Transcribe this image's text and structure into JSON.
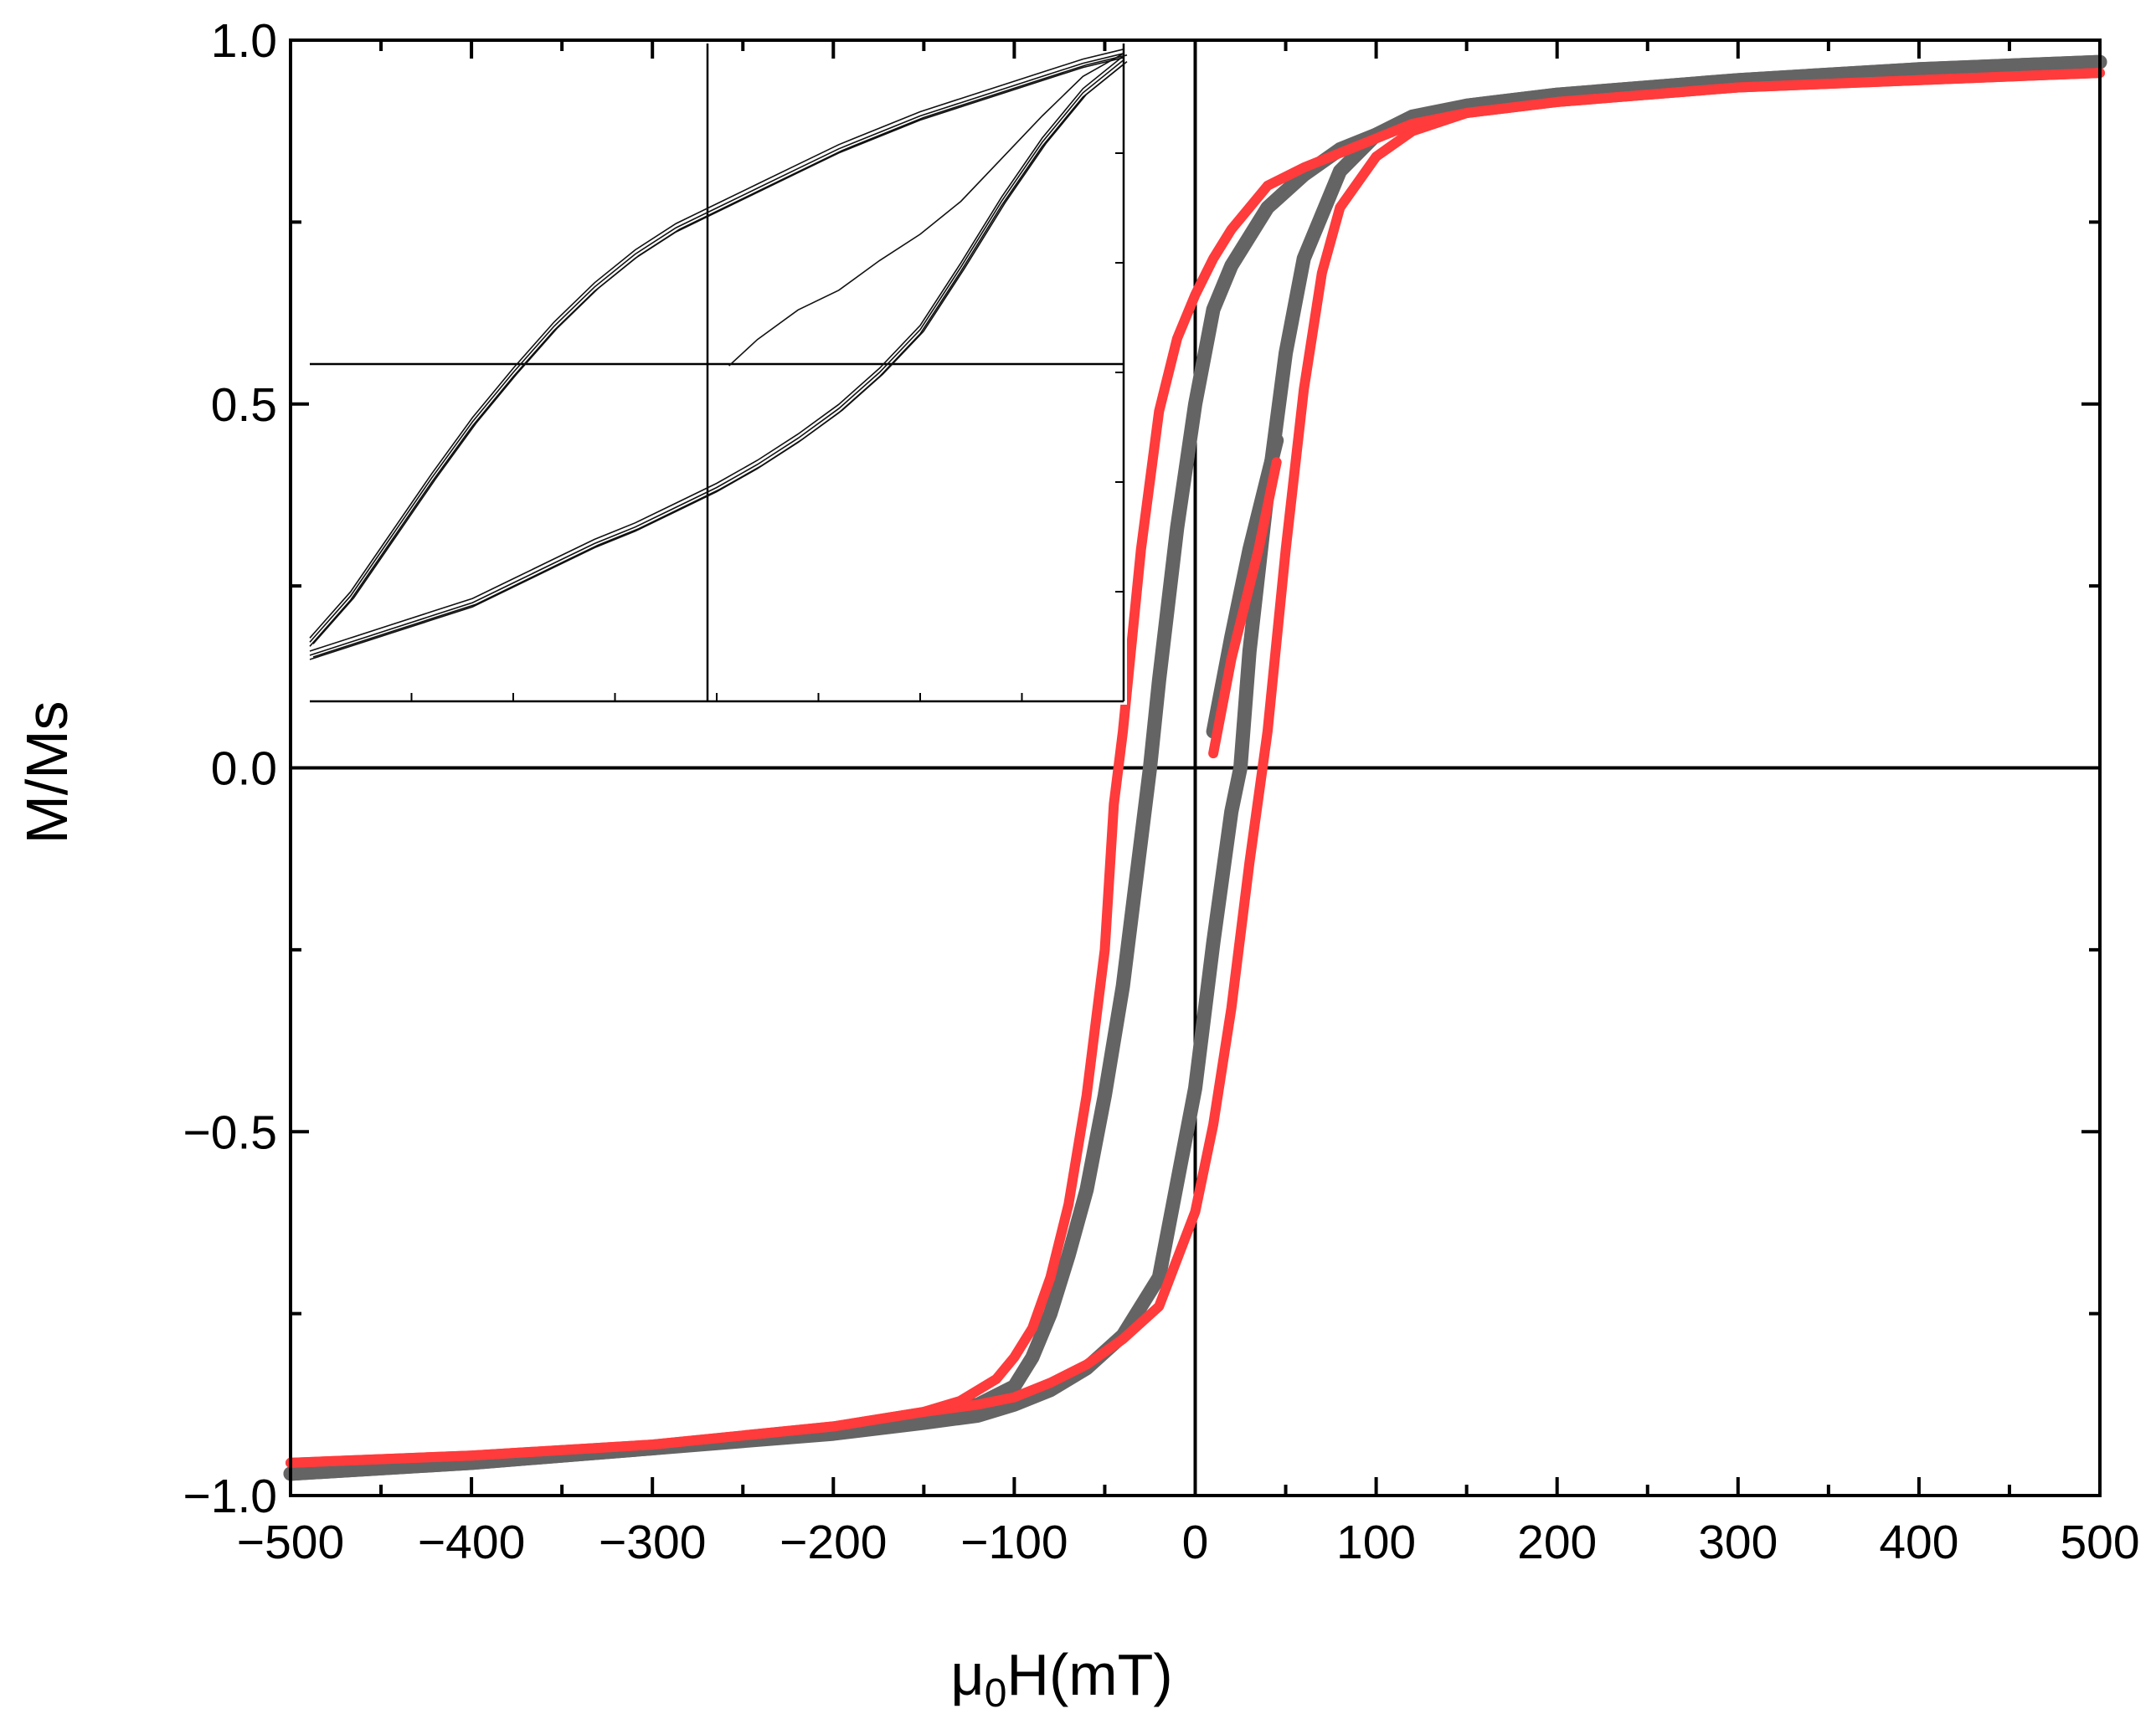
{
  "chart_data": {
    "type": "line",
    "title": "",
    "xlabel": "μ0H(mT)",
    "xlabel_main": "μ",
    "xlabel_sub": "0",
    "xlabel_rest": "H(mT)",
    "ylabel": "M/Ms",
    "xlim": [
      -500,
      500
    ],
    "ylim": [
      -1.0,
      1.0
    ],
    "x_ticks": [
      -500,
      -400,
      -300,
      -200,
      -100,
      0,
      100,
      200,
      300,
      400,
      500
    ],
    "x_tick_labels": [
      "−500",
      "−400",
      "−300",
      "−200",
      "−100",
      "0",
      "100",
      "200",
      "300",
      "400",
      "500"
    ],
    "y_ticks": [
      -1.0,
      -0.5,
      0.0,
      0.5,
      1.0
    ],
    "y_tick_labels": [
      "−1.0",
      "−0.5",
      "0.0",
      "0.5",
      "1.0"
    ],
    "grid": false,
    "legend": "none",
    "series": [
      {
        "color": "#646464",
        "descending": [
          [
            500,
            0.97
          ],
          [
            400,
            0.96
          ],
          [
            300,
            0.945
          ],
          [
            200,
            0.925
          ],
          [
            150,
            0.91
          ],
          [
            120,
            0.895
          ],
          [
            100,
            0.87
          ],
          [
            80,
            0.85
          ],
          [
            60,
            0.815
          ],
          [
            40,
            0.77
          ],
          [
            20,
            0.69
          ],
          [
            10,
            0.63
          ],
          [
            0,
            0.5
          ],
          [
            -10,
            0.33
          ],
          [
            -20,
            0.12
          ],
          [
            -25,
            0.0
          ],
          [
            -30,
            -0.1
          ],
          [
            -40,
            -0.3
          ],
          [
            -50,
            -0.45
          ],
          [
            -60,
            -0.58
          ],
          [
            -70,
            -0.67
          ],
          [
            -80,
            -0.75
          ],
          [
            -90,
            -0.81
          ],
          [
            -100,
            -0.85
          ],
          [
            -120,
            -0.875
          ],
          [
            -150,
            -0.89
          ],
          [
            -200,
            -0.91
          ],
          [
            -300,
            -0.935
          ],
          [
            -400,
            -0.955
          ],
          [
            -500,
            -0.97
          ]
        ],
        "ascending": [
          [
            -500,
            -0.97
          ],
          [
            -400,
            -0.955
          ],
          [
            -300,
            -0.935
          ],
          [
            -200,
            -0.915
          ],
          [
            -150,
            -0.9
          ],
          [
            -120,
            -0.89
          ],
          [
            -100,
            -0.875
          ],
          [
            -80,
            -0.855
          ],
          [
            -60,
            -0.825
          ],
          [
            -40,
            -0.78
          ],
          [
            -20,
            -0.7
          ],
          [
            0,
            -0.44
          ],
          [
            10,
            -0.24
          ],
          [
            20,
            -0.06
          ],
          [
            25,
            0.0
          ],
          [
            30,
            0.16
          ],
          [
            40,
            0.38
          ],
          [
            50,
            0.57
          ],
          [
            60,
            0.7
          ],
          [
            80,
            0.82
          ],
          [
            100,
            0.87
          ],
          [
            120,
            0.89
          ],
          [
            150,
            0.91
          ],
          [
            200,
            0.925
          ],
          [
            300,
            0.945
          ],
          [
            400,
            0.96
          ],
          [
            500,
            0.97
          ]
        ],
        "initial": [
          [
            10,
            0.05
          ],
          [
            20,
            0.18
          ],
          [
            30,
            0.3
          ],
          [
            45,
            0.45
          ]
        ]
      },
      {
        "color": "#ff3b3b",
        "descending": [
          [
            500,
            0.955
          ],
          [
            400,
            0.945
          ],
          [
            300,
            0.935
          ],
          [
            200,
            0.915
          ],
          [
            150,
            0.9
          ],
          [
            120,
            0.885
          ],
          [
            100,
            0.865
          ],
          [
            80,
            0.845
          ],
          [
            60,
            0.825
          ],
          [
            40,
            0.8
          ],
          [
            20,
            0.74
          ],
          [
            10,
            0.7
          ],
          [
            0,
            0.65
          ],
          [
            -10,
            0.59
          ],
          [
            -20,
            0.49
          ],
          [
            -30,
            0.3
          ],
          [
            -40,
            0.05
          ],
          [
            -45,
            -0.05
          ],
          [
            -50,
            -0.25
          ],
          [
            -60,
            -0.45
          ],
          [
            -70,
            -0.6
          ],
          [
            -80,
            -0.7
          ],
          [
            -90,
            -0.77
          ],
          [
            -100,
            -0.81
          ],
          [
            -110,
            -0.84
          ],
          [
            -130,
            -0.87
          ],
          [
            -150,
            -0.885
          ],
          [
            -200,
            -0.905
          ],
          [
            -300,
            -0.93
          ],
          [
            -400,
            -0.945
          ],
          [
            -500,
            -0.955
          ]
        ],
        "ascending": [
          [
            -500,
            -0.955
          ],
          [
            -400,
            -0.945
          ],
          [
            -300,
            -0.93
          ],
          [
            -200,
            -0.905
          ],
          [
            -150,
            -0.885
          ],
          [
            -120,
            -0.875
          ],
          [
            -100,
            -0.865
          ],
          [
            -80,
            -0.845
          ],
          [
            -60,
            -0.82
          ],
          [
            -40,
            -0.785
          ],
          [
            -20,
            -0.74
          ],
          [
            0,
            -0.61
          ],
          [
            10,
            -0.49
          ],
          [
            20,
            -0.33
          ],
          [
            30,
            -0.13
          ],
          [
            40,
            0.05
          ],
          [
            50,
            0.3
          ],
          [
            60,
            0.52
          ],
          [
            70,
            0.68
          ],
          [
            80,
            0.77
          ],
          [
            100,
            0.84
          ],
          [
            120,
            0.875
          ],
          [
            150,
            0.9
          ],
          [
            200,
            0.915
          ],
          [
            300,
            0.935
          ],
          [
            400,
            0.945
          ],
          [
            500,
            0.955
          ]
        ],
        "initial": [
          [
            10,
            0.02
          ],
          [
            20,
            0.15
          ],
          [
            35,
            0.3
          ],
          [
            45,
            0.42
          ]
        ]
      }
    ],
    "inset": {
      "position": "top-left",
      "axis_labels": "none",
      "upper_branch": [
        [
          -1.0,
          -0.82
        ],
        [
          -0.9,
          -0.68
        ],
        [
          -0.8,
          -0.5
        ],
        [
          -0.7,
          -0.32
        ],
        [
          -0.6,
          -0.15
        ],
        [
          -0.5,
          0.0
        ],
        [
          -0.4,
          0.14
        ],
        [
          -0.3,
          0.26
        ],
        [
          -0.2,
          0.36
        ],
        [
          -0.1,
          0.44
        ],
        [
          0.0,
          0.5
        ],
        [
          0.1,
          0.56
        ],
        [
          0.2,
          0.62
        ],
        [
          0.3,
          0.68
        ],
        [
          0.4,
          0.73
        ],
        [
          0.5,
          0.78
        ],
        [
          0.6,
          0.82
        ],
        [
          0.7,
          0.86
        ],
        [
          0.8,
          0.9
        ],
        [
          0.9,
          0.94
        ],
        [
          1.0,
          0.97
        ]
      ],
      "lower_branch": [
        [
          -1.0,
          -0.86
        ],
        [
          -0.9,
          -0.82
        ],
        [
          -0.8,
          -0.78
        ],
        [
          -0.7,
          -0.74
        ],
        [
          -0.6,
          -0.7
        ],
        [
          -0.5,
          -0.64
        ],
        [
          -0.4,
          -0.58
        ],
        [
          -0.3,
          -0.52
        ],
        [
          -0.2,
          -0.47
        ],
        [
          -0.1,
          -0.41
        ],
        [
          0.0,
          -0.35
        ],
        [
          0.1,
          -0.28
        ],
        [
          0.2,
          -0.2
        ],
        [
          0.3,
          -0.11
        ],
        [
          0.4,
          0.0
        ],
        [
          0.5,
          0.13
        ],
        [
          0.6,
          0.32
        ],
        [
          0.7,
          0.52
        ],
        [
          0.8,
          0.7
        ],
        [
          0.9,
          0.85
        ],
        [
          1.0,
          0.95
        ]
      ],
      "initial_curve": [
        [
          0.03,
          0.02
        ],
        [
          0.1,
          0.1
        ],
        [
          0.2,
          0.19
        ],
        [
          0.3,
          0.25
        ],
        [
          0.4,
          0.34
        ],
        [
          0.5,
          0.42
        ],
        [
          0.6,
          0.52
        ],
        [
          0.7,
          0.65
        ],
        [
          0.8,
          0.78
        ],
        [
          0.9,
          0.9
        ],
        [
          1.0,
          0.97
        ]
      ]
    }
  }
}
